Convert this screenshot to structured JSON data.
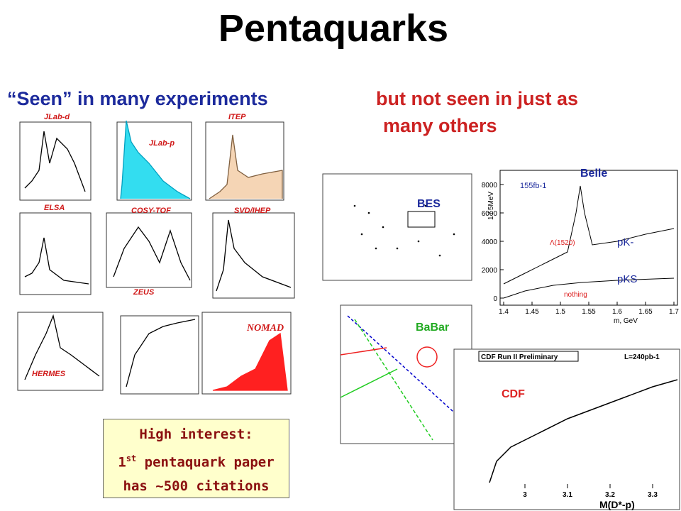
{
  "title": "Pentaquarks",
  "left_heading": "“Seen” in many experiments",
  "right_heading": [
    "but not seen in just as",
    "many others"
  ],
  "seen_experiments": [
    "JLab-d",
    "JLab-p",
    "ITEP",
    "ELSA",
    "COSY-TOF",
    "SVD/IHEP",
    "ZEUS",
    "HERMES",
    "NOMAD"
  ],
  "not_seen_experiments": [
    "BES",
    "Belle",
    "BaBar",
    "CDF"
  ],
  "belle_plot": {
    "lumi": "155fb-1",
    "y_label": "1 / 5MeV",
    "x_label": "m, GeV",
    "curve_upper": "pK-",
    "curve_lower": "pKS",
    "peak": "Λ(1520)",
    "note": "nothing",
    "yticks": [
      0,
      2000,
      4000,
      6000,
      8000
    ],
    "xticks": [
      1.4,
      1.45,
      1.5,
      1.55,
      1.6,
      1.65,
      1.7
    ]
  },
  "cdf_plot": {
    "header": "CDF Run II Preliminary",
    "lumi": "L=240pb-1",
    "x_label": "M(D*-p)",
    "xticks": [
      3.0,
      3.1,
      3.2,
      3.3
    ]
  },
  "callout": {
    "line1": "High interest:",
    "line2_number": "1",
    "line2_sup": "st",
    "line2_rest": " pentaquark paper",
    "line3": "has ~500 citations"
  }
}
